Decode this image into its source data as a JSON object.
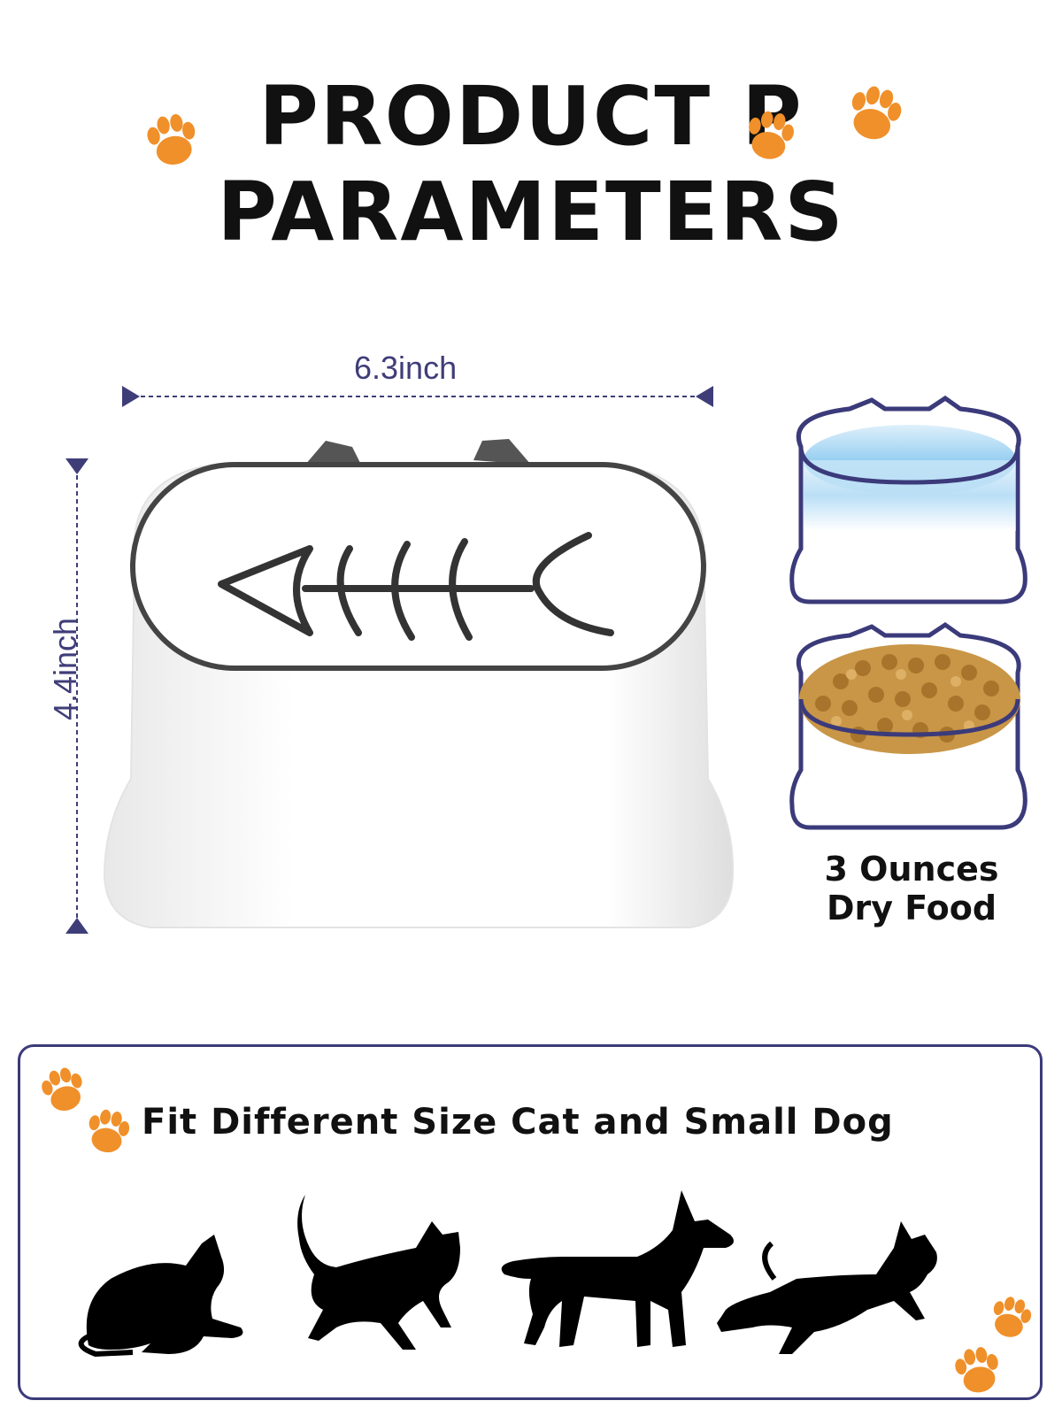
{
  "heading": {
    "line1": "PRODUCT P",
    "line2": "PARAMETERS"
  },
  "dimensions": {
    "width": "6.3inch",
    "height": "4.4inch"
  },
  "capacity": {
    "line1": "3 Ounces",
    "line2": "Dry Food"
  },
  "panel": {
    "title": "Fit Different Size Cat and Small Dog"
  },
  "colors": {
    "accent": "#3f3d78",
    "paw": "#f0902a",
    "text": "#111111"
  },
  "icons": [
    "paw-icon",
    "cat-silhouette-icon",
    "dog-silhouette-icon",
    "fish-bone-icon"
  ]
}
